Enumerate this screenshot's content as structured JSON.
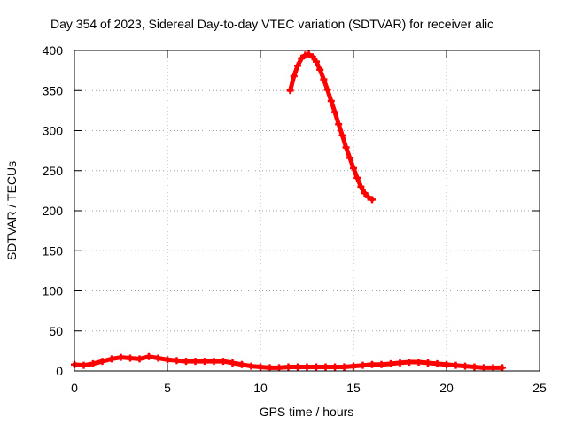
{
  "chart_data": {
    "type": "scatter",
    "title": "Day 354 of 2023, Sidereal Day-to-day VTEC variation (SDTVAR) for receiver alic",
    "xlabel": "GPS time / hours",
    "ylabel": "SDTVAR / TECUs",
    "xlim": [
      0,
      25
    ],
    "ylim": [
      0,
      400
    ],
    "xticks": [
      "0",
      "5",
      "10",
      "15",
      "20",
      "25"
    ],
    "yticks": [
      "0",
      "50",
      "100",
      "150",
      "200",
      "250",
      "300",
      "350",
      "400"
    ],
    "grid": true,
    "legend": "none",
    "series": [
      {
        "color": "#ff0000",
        "x": [
          0,
          0.5,
          1,
          1.5,
          2,
          2.5,
          3,
          3.5,
          4,
          4.5,
          5,
          5.5,
          6,
          6.5,
          7,
          7.5,
          8,
          8.5,
          9,
          9.5,
          10,
          10.5,
          11,
          11.5,
          12,
          12.5,
          13,
          13.5,
          14,
          14.5,
          15,
          15.5,
          16,
          16.5,
          17,
          17.5,
          18,
          18.5,
          19,
          19.5,
          20,
          20.5,
          21,
          21.5,
          22,
          22.5,
          23
        ],
        "y": [
          8,
          7,
          9,
          12,
          15,
          17,
          16,
          15,
          18,
          16,
          14,
          13,
          12,
          12,
          12,
          12,
          12,
          10,
          8,
          6,
          5,
          4,
          4,
          5,
          5,
          5,
          5,
          5,
          5,
          5,
          6,
          7,
          8,
          8,
          9,
          10,
          11,
          11,
          10,
          9,
          8,
          7,
          6,
          5,
          4,
          4,
          4
        ]
      },
      {
        "color": "#ff0000",
        "x": [
          11.6,
          11.8,
          12.0,
          12.2,
          12.4,
          12.6,
          12.8,
          13.0,
          13.2,
          13.4,
          13.6,
          13.8,
          14.0,
          14.2,
          14.4,
          14.6,
          14.8,
          15.0,
          15.2,
          15.4,
          15.6,
          15.8,
          16.0
        ],
        "y": [
          350,
          368,
          381,
          390,
          394,
          395,
          392,
          386,
          376,
          364,
          351,
          337,
          323,
          308,
          294,
          279,
          266,
          253,
          241,
          230,
          222,
          217,
          214
        ]
      }
    ]
  }
}
